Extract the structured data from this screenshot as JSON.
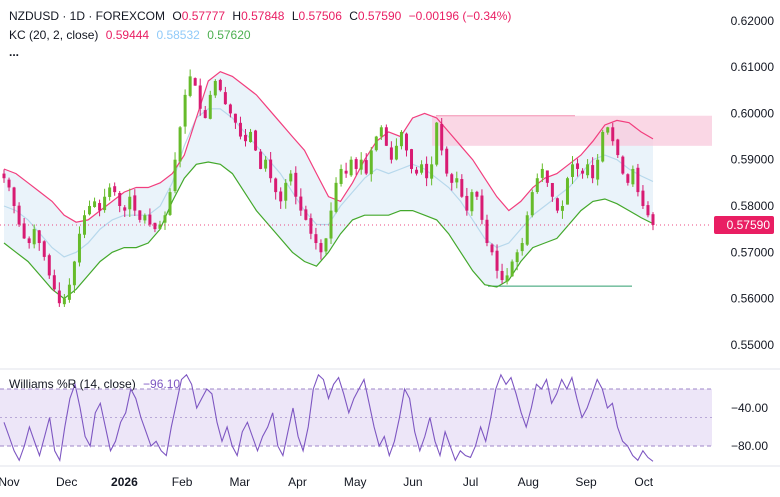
{
  "header": {
    "symbol": "NZDUSD · 1D · FOREXCOM",
    "o_label": "O",
    "o_value": "0.57777",
    "h_label": "H",
    "h_value": "0.57848",
    "l_label": "L",
    "l_value": "0.57506",
    "c_label": "C",
    "c_value": "0.57590",
    "change": "−0.00196 (−0.34%)"
  },
  "kc_legend": {
    "label": "KC (20, 2, close)",
    "upper": "0.59444",
    "middle": "0.58532",
    "lower": "0.57620"
  },
  "more_indicator": "...",
  "williams_legend": {
    "label": "Williams %R (14, close)",
    "value": "−96.10"
  },
  "price_badge": "0.57590",
  "colors": {
    "up": "#66bb2a",
    "down": "#d81b72",
    "kc_upper": "#f23e7e",
    "kc_middle": "#b7d8ec",
    "kc_lower": "#43a82b",
    "kc_fill": "#eaf3fa",
    "williams": "#7e57c2",
    "williams_band": "#ede6f8",
    "zone": "#f8c9dc",
    "support": "#2e9e6e"
  },
  "chart_data": {
    "type": "candlestick",
    "price_axis": {
      "ticks": [
        "0.62000",
        "0.61000",
        "0.60000",
        "0.59000",
        "0.58000",
        "0.57000",
        "0.56000",
        "0.55000"
      ],
      "values": [
        0.62,
        0.61,
        0.6,
        0.59,
        0.58,
        0.57,
        0.56,
        0.55
      ],
      "range": [
        0.545,
        0.6245
      ]
    },
    "time_axis": {
      "labels": [
        "Nov",
        "Dec",
        "2026",
        "Feb",
        "Mar",
        "Apr",
        "May",
        "Jun",
        "Jul",
        "Aug",
        "Sep",
        "Oct"
      ],
      "bold": [
        false,
        false,
        true,
        false,
        false,
        false,
        false,
        false,
        false,
        false,
        false,
        false
      ]
    },
    "williams_axis": {
      "ticks": [
        "−40.00",
        "−80.00"
      ],
      "values": [
        -40,
        -80
      ],
      "band": [
        -20,
        -80
      ],
      "range": [
        -100,
        0
      ]
    },
    "close_path": [
      0.586,
      0.584,
      0.58,
      0.576,
      0.573,
      0.572,
      0.575,
      0.572,
      0.569,
      0.565,
      0.562,
      0.559,
      0.56,
      0.563,
      0.568,
      0.574,
      0.578,
      0.58,
      0.581,
      0.579,
      0.582,
      0.584,
      0.583,
      0.58,
      0.579,
      0.582,
      0.579,
      0.577,
      0.578,
      0.576,
      0.575,
      0.576,
      0.578,
      0.583,
      0.59,
      0.597,
      0.604,
      0.608,
      0.606,
      0.601,
      0.599,
      0.604,
      0.607,
      0.605,
      0.602,
      0.6,
      0.598,
      0.595,
      0.594,
      0.596,
      0.592,
      0.588,
      0.59,
      0.586,
      0.583,
      0.581,
      0.585,
      0.587,
      0.582,
      0.579,
      0.577,
      0.574,
      0.572,
      0.57,
      0.573,
      0.579,
      0.585,
      0.588,
      0.587,
      0.59,
      0.588,
      0.59,
      0.587,
      0.592,
      0.595,
      0.597,
      0.593,
      0.59,
      0.593,
      0.596,
      0.592,
      0.588,
      0.587,
      0.589,
      0.586,
      0.589,
      0.598,
      0.592,
      0.587,
      0.585,
      0.586,
      0.582,
      0.579,
      0.583,
      0.582,
      0.577,
      0.572,
      0.57,
      0.566,
      0.564,
      0.565,
      0.568,
      0.57,
      0.572,
      0.578,
      0.583,
      0.586,
      0.588,
      0.585,
      0.582,
      0.579,
      0.58,
      0.586,
      0.589,
      0.588,
      0.587,
      0.589,
      0.586,
      0.59,
      0.596,
      0.597,
      0.594,
      0.591,
      0.587,
      0.585,
      0.588,
      0.583,
      0.58,
      0.578,
      0.5759
    ],
    "kc_upper_path": [
      0.588,
      0.587,
      0.585,
      0.583,
      0.581,
      0.578,
      0.5765,
      0.577,
      0.579,
      0.581,
      0.583,
      0.584,
      0.584,
      0.585,
      0.587,
      0.591,
      0.599,
      0.607,
      0.609,
      0.608,
      0.606,
      0.604,
      0.601,
      0.598,
      0.595,
      0.592,
      0.587,
      0.582,
      0.581,
      0.585,
      0.59,
      0.594,
      0.596,
      0.595,
      0.599,
      0.6,
      0.599,
      0.596,
      0.593,
      0.59,
      0.586,
      0.582,
      0.579,
      0.581,
      0.584,
      0.586,
      0.587,
      0.589,
      0.591,
      0.594,
      0.5975,
      0.5985,
      0.598,
      0.596,
      0.5945
    ],
    "kc_middle_path": [
      0.58,
      0.579,
      0.577,
      0.574,
      0.571,
      0.569,
      0.57,
      0.572,
      0.575,
      0.577,
      0.578,
      0.578,
      0.578,
      0.58,
      0.585,
      0.593,
      0.599,
      0.601,
      0.601,
      0.599,
      0.596,
      0.593,
      0.59,
      0.587,
      0.583,
      0.579,
      0.576,
      0.576,
      0.58,
      0.583,
      0.586,
      0.588,
      0.587,
      0.588,
      0.589,
      0.588,
      0.586,
      0.584,
      0.581,
      0.577,
      0.573,
      0.571,
      0.572,
      0.575,
      0.578,
      0.58,
      0.582,
      0.584,
      0.587,
      0.59,
      0.591,
      0.59,
      0.588,
      0.5865,
      0.5853
    ],
    "kc_lower_path": [
      0.572,
      0.57,
      0.568,
      0.565,
      0.562,
      0.56,
      0.562,
      0.565,
      0.568,
      0.57,
      0.571,
      0.571,
      0.572,
      0.575,
      0.581,
      0.586,
      0.589,
      0.5895,
      0.589,
      0.587,
      0.583,
      0.579,
      0.576,
      0.573,
      0.57,
      0.568,
      0.567,
      0.57,
      0.574,
      0.577,
      0.578,
      0.578,
      0.578,
      0.579,
      0.579,
      0.578,
      0.577,
      0.574,
      0.57,
      0.566,
      0.563,
      0.5625,
      0.564,
      0.568,
      0.571,
      0.572,
      0.573,
      0.576,
      0.579,
      0.581,
      0.5815,
      0.5805,
      0.579,
      0.5775,
      0.5762
    ],
    "williams_path": [
      -55,
      -70,
      -85,
      -95,
      -80,
      -60,
      -75,
      -90,
      -70,
      -50,
      -85,
      -95,
      -60,
      -30,
      -15,
      -40,
      -70,
      -80,
      -45,
      -35,
      -60,
      -85,
      -75,
      -55,
      -45,
      -20,
      -30,
      -50,
      -65,
      -80,
      -75,
      -85,
      -90,
      -60,
      -35,
      -10,
      -5,
      -15,
      -40,
      -30,
      -20,
      -25,
      -55,
      -75,
      -60,
      -80,
      -90,
      -65,
      -55,
      -70,
      -85,
      -70,
      -60,
      -45,
      -80,
      -90,
      -65,
      -40,
      -70,
      -85,
      -60,
      -20,
      -5,
      -10,
      -30,
      -15,
      -8,
      -25,
      -45,
      -30,
      -20,
      -10,
      -35,
      -60,
      -80,
      -70,
      -90,
      -75,
      -50,
      -20,
      -30,
      -65,
      -85,
      -70,
      -50,
      -75,
      -90,
      -65,
      -80,
      -95,
      -85,
      -90,
      -92,
      -80,
      -60,
      -75,
      -50,
      -20,
      -5,
      -15,
      -8,
      -25,
      -45,
      -60,
      -40,
      -15,
      -20,
      -10,
      -35,
      -25,
      -10,
      -20,
      -8,
      -30,
      -50,
      -40,
      -25,
      -10,
      -20,
      -40,
      -35,
      -60,
      -75,
      -80,
      -90,
      -95,
      -85,
      -92,
      -96.1
    ],
    "resistance_zone": [
      0.593,
      0.5995
    ],
    "zone_top_line": 0.5995,
    "support_level": 0.5627,
    "current_price": 0.5759
  }
}
